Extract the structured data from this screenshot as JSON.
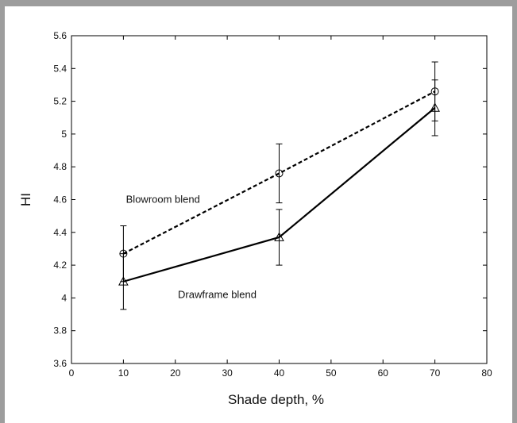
{
  "chart_data": {
    "type": "line",
    "xlabel": "Shade depth, %",
    "ylabel": "HI",
    "xlim": [
      0,
      80
    ],
    "ylim": [
      3.6,
      5.6
    ],
    "x_ticks": [
      0,
      10,
      20,
      30,
      40,
      50,
      60,
      70,
      80
    ],
    "y_ticks": [
      3.6,
      3.8,
      4,
      4.2,
      4.4,
      4.6,
      4.8,
      5,
      5.2,
      5.4,
      5.6
    ],
    "grid": false,
    "series": [
      {
        "name": "Blowroom blend",
        "line_style": "dashed",
        "marker": "circle",
        "color": "#000000",
        "x": [
          10,
          40,
          70
        ],
        "y": [
          4.27,
          4.76,
          5.26
        ],
        "error": [
          0.17,
          0.18,
          0.18
        ]
      },
      {
        "name": "Drawframe blend",
        "line_style": "solid",
        "marker": "triangle",
        "color": "#000000",
        "x": [
          10,
          40,
          70
        ],
        "y": [
          4.1,
          4.37,
          5.16
        ],
        "error": [
          0.17,
          0.17,
          0.17
        ]
      }
    ],
    "annotations": [
      {
        "text": "Blowroom blend",
        "series": 0
      },
      {
        "text": "Drawframe blend",
        "series": 1
      }
    ]
  }
}
